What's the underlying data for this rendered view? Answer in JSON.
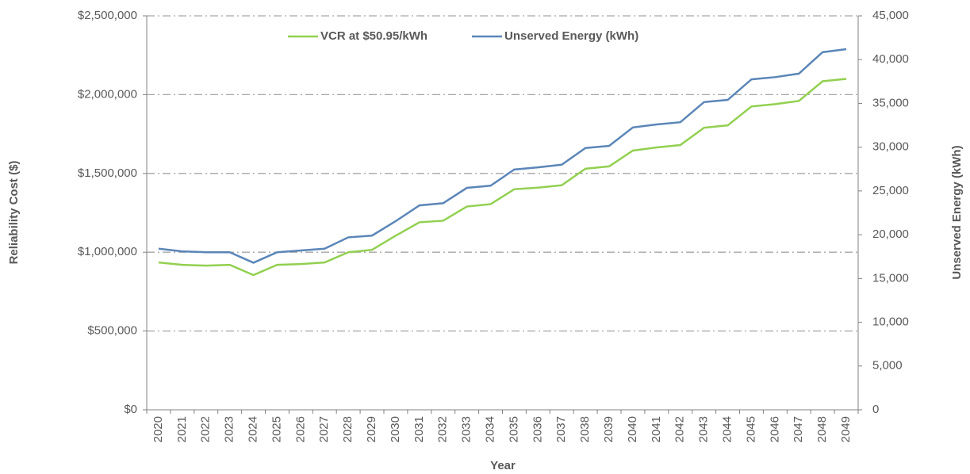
{
  "chart_data": {
    "type": "line",
    "x_label": "Year",
    "y_label": "Reliability Cost ($)",
    "y2_label": "Unserved Energy (kWh)",
    "categories": [
      "2020",
      "2021",
      "2022",
      "2023",
      "2024",
      "2025",
      "2026",
      "2027",
      "2028",
      "2029",
      "2030",
      "2031",
      "2032",
      "2033",
      "2034",
      "2035",
      "2036",
      "2037",
      "2038",
      "2039",
      "2040",
      "2041",
      "2042",
      "2043",
      "2044",
      "2045",
      "2046",
      "2047",
      "2048",
      "2049"
    ],
    "series": [
      {
        "name": "VCR at $50.95/kWh",
        "color": "#92d050",
        "values": [
          935000,
          920000,
          915000,
          920000,
          855000,
          920000,
          925000,
          935000,
          1000000,
          1015000,
          1105000,
          1190000,
          1200000,
          1290000,
          1305000,
          1400000,
          1410000,
          1425000,
          1530000,
          1545000,
          1645000,
          1665000,
          1680000,
          1790000,
          1805000,
          1925000,
          1940000,
          1960000,
          2085000,
          2100000
        ]
      },
      {
        "name": "Unserved Energy (kWh)",
        "color": "#5b86b8",
        "axis": "y2",
        "values": [
          18400,
          18100,
          18000,
          18000,
          16800,
          18000,
          18200,
          18400,
          19700,
          19900,
          21550,
          23350,
          23600,
          25350,
          25600,
          27450,
          27700,
          28000,
          29900,
          30150,
          32250,
          32600,
          32850,
          35150,
          35400,
          37750,
          38000,
          38400,
          40850,
          41200
        ]
      }
    ],
    "ylim": [
      0,
      2500000
    ],
    "yticks": [
      {
        "value": 0,
        "label": "$0"
      },
      {
        "value": 500000,
        "label": "$500,000"
      },
      {
        "value": 1000000,
        "label": "$1,000,000"
      },
      {
        "value": 1500000,
        "label": "$1,500,000"
      },
      {
        "value": 2000000,
        "label": "$2,000,000"
      },
      {
        "value": 2500000,
        "label": "$2,500,000"
      }
    ],
    "y2lim": [
      0,
      45000
    ],
    "y2ticks": [
      0,
      {
        "value": 5000,
        "label": "5,000"
      },
      {
        "value": 10000,
        "label": "10,000"
      },
      {
        "value": 15000,
        "label": "15,000"
      },
      {
        "value": 20000,
        "label": "20,000"
      },
      {
        "value": 25000,
        "label": "25,000"
      },
      {
        "value": 30000,
        "label": "30,000"
      },
      {
        "value": 35000,
        "label": "35,000"
      },
      {
        "value": 40000,
        "label": "40,000"
      },
      {
        "value": 45000,
        "label": "45,000"
      }
    ],
    "grid": true,
    "legend": "top"
  }
}
